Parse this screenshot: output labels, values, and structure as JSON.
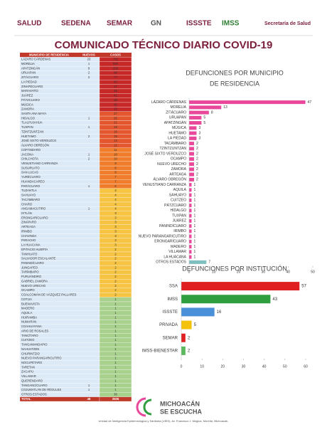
{
  "header": {
    "logos": [
      "SALUD",
      "SEDENA",
      "SEMAR",
      "GN",
      "ISSSTE",
      "IMSS",
      "Secretaría de Salud"
    ]
  },
  "title": "COMUNICADO TÉCNICO DIARIO COVID-19",
  "table": {
    "columns": [
      "MUNICIPIO DE RESIDENCIA",
      "NUEVOS",
      "CASOS"
    ],
    "rows": [
      [
        "LÁZARO CÁRDENAS",
        23,
        792,
        "#c62828"
      ],
      [
        "MORELIA",
        1,
        632,
        "#c62828"
      ],
      [
        "APATZINGÁN",
        9,
        259,
        "#c62828"
      ],
      [
        "URUAPAN",
        2,
        98,
        "#c62828"
      ],
      [
        "ZITÁCUARO",
        2,
        77,
        "#c62828"
      ],
      [
        "LA PIEDAD",
        null,
        62,
        "#c62828"
      ],
      [
        "ZINAPÉCUARO",
        null,
        47,
        "#c62828"
      ],
      [
        "MARAVATÍO",
        null,
        45,
        "#c62828"
      ],
      [
        "JUÁREZ",
        null,
        42,
        "#c62828"
      ],
      [
        "PÁTZCUARO",
        null,
        38,
        "#c62828"
      ],
      [
        "MÚGICA",
        null,
        35,
        "#c62828"
      ],
      [
        "ZAMORA",
        null,
        33,
        "#c62828"
      ],
      [
        "SANTA ANA MAYA",
        null,
        27,
        "#e4572e"
      ],
      [
        "HIDALGO",
        1,
        25,
        "#e4572e"
      ],
      [
        "TLALPUJAHUA",
        null,
        21,
        "#e4572e"
      ],
      [
        "TUXPAN",
        1,
        18,
        "#e4572e"
      ],
      [
        "TZINTZUNTZAN",
        null,
        16,
        "#e4572e"
      ],
      [
        "HUETAMO",
        2,
        15,
        "#e4572e"
      ],
      [
        "JOSÉ SIXTO VERDUZCO",
        null,
        13,
        "#e4572e"
      ],
      [
        "ÁLVARO OBREGÓN",
        null,
        12,
        "#e4572e"
      ],
      [
        "COPÁNDARO",
        null,
        11,
        "#ef7d2c"
      ],
      [
        "JACONA",
        1,
        10,
        "#ef7d2c"
      ],
      [
        "CHILCHOTA",
        2,
        10,
        "#ef7d2c"
      ],
      [
        "VENUSTIANO CARRANZA",
        null,
        9,
        "#ef7d2c"
      ],
      [
        "SUSUPUATO",
        null,
        8,
        "#ef7d2c"
      ],
      [
        "SAN LUCAS",
        null,
        8,
        "#ef7d2c"
      ],
      [
        "YURÉCUARO",
        null,
        7,
        "#ef7d2c"
      ],
      [
        "HUANDACAREO",
        null,
        7,
        "#ef7d2c"
      ],
      [
        "PARÁCUARO",
        1,
        6,
        "#ef7d2c"
      ],
      [
        "TUZANTLA",
        null,
        4,
        "#f6c343"
      ],
      [
        "SAHUAYO",
        null,
        4,
        "#f6c343"
      ],
      [
        "TACÁMBARO",
        null,
        4,
        "#f6c343"
      ],
      [
        "CHARO",
        null,
        4,
        "#f6c343"
      ],
      [
        "ANGAMACUTIRO",
        1,
        4,
        "#f6c343"
      ],
      [
        "IXTLÁN",
        null,
        3,
        "#f6c343"
      ],
      [
        "ERONGARÍCUARO",
        null,
        3,
        "#f6c343"
      ],
      [
        "ZINÁPARO",
        null,
        3,
        "#f6c343"
      ],
      [
        "ARTEAGA",
        null,
        3,
        "#f6c343"
      ],
      [
        "IRIMBO",
        null,
        3,
        "#f6c343"
      ],
      [
        "CHAVINDA",
        null,
        3,
        "#f6c343"
      ],
      [
        "PARACHO",
        null,
        3,
        "#f6c343"
      ],
      [
        "LA HUACANA",
        null,
        3,
        "#f6c343"
      ],
      [
        "EPITACIO HUERTA",
        null,
        2,
        "#f6c343"
      ],
      [
        "TANHUATO",
        null,
        2,
        "#f6c343"
      ],
      [
        "SALVADOR ESCALANTE",
        null,
        2,
        "#f6c343"
      ],
      [
        "PANINDÍCUARO",
        null,
        2,
        "#f6c343"
      ],
      [
        "JUNGAPEO",
        null,
        2,
        "#f6c343"
      ],
      [
        "TARÍMBARO",
        null,
        2,
        "#f6c343"
      ],
      [
        "PURUÁNDIRO",
        null,
        2,
        "#f6c343"
      ],
      [
        "GABRIEL ZAMORA",
        null,
        2,
        "#f6c343"
      ],
      [
        "NUEVO URECHO",
        null,
        2,
        "#f6c343"
      ],
      [
        "OCAMPO",
        null,
        2,
        "#f6c343"
      ],
      [
        "COALCOMÁN DE VÁZQUEZ PALLARES",
        null,
        2,
        "#f6c343"
      ],
      [
        "COTIJA",
        null,
        1,
        "#a9d18e"
      ],
      [
        "BUENAVISTA",
        null,
        1,
        "#a9d18e"
      ],
      [
        "MADERO",
        null,
        1,
        "#a9d18e"
      ],
      [
        "AQUILA",
        null,
        1,
        "#a9d18e"
      ],
      [
        "HUIRAMBA",
        null,
        1,
        "#a9d18e"
      ],
      [
        "NUMARÁN",
        null,
        1,
        "#a9d18e"
      ],
      [
        "COAHUAYANA",
        null,
        1,
        "#a9d18e"
      ],
      [
        "ARIO DE ROSALES",
        null,
        1,
        "#a9d18e"
      ],
      [
        "TANCÍTARO",
        null,
        1,
        "#a9d18e"
      ],
      [
        "CUITZEO",
        null,
        1,
        "#a9d18e"
      ],
      [
        "TANGAMANDAPIO",
        null,
        1,
        "#a9d18e"
      ],
      [
        "NAHUATZEN",
        null,
        1,
        "#a9d18e"
      ],
      [
        "CHURINTZIO",
        null,
        1,
        "#a9d18e"
      ],
      [
        "NUEVO PARANGARICUTIRO",
        null,
        1,
        "#a9d18e"
      ],
      [
        "NOCUPÉTARO",
        null,
        1,
        "#a9d18e"
      ],
      [
        "TARETAN",
        null,
        1,
        "#a9d18e"
      ],
      [
        "ZACAPU",
        null,
        1,
        "#a9d18e"
      ],
      [
        "VILLAMAR",
        null,
        1,
        "#a9d18e"
      ],
      [
        "QUERÉNDARO",
        null,
        1,
        "#a9d18e"
      ],
      [
        "TANGANCÍCUARO",
        1,
        1,
        "#a9d18e"
      ],
      [
        "COJUMATLÁN DE RÉGULES",
        1,
        1,
        "#a9d18e"
      ],
      [
        "OTROS ESTADOS",
        null,
        36,
        "#a9d18e"
      ]
    ],
    "total": [
      "TOTAL",
      48,
      2506
    ]
  },
  "chart_data": [
    {
      "type": "barh",
      "title_lines": [
        "DEFUNCIONES POR MUNICIPIO",
        "DE RESIDENCIA"
      ],
      "categories": [
        "LÁZARO CÁRDENAS",
        "MORELIA",
        "ZITÁCUARO",
        "URUAPAN",
        "APATZINGÁN",
        "MÚGICA",
        "HUETAMO",
        "LA PIEDAD",
        "TACÁMBARO",
        "TZINTZUNTZAN",
        "JOSÉ SIXTO VERDUZCO",
        "OCAMPO",
        "NUEVO URECHO",
        "ZAMORA",
        "ARTEAGA",
        "ÁLVARO OBREGÓN",
        "VENUSTIANO CARRANZA",
        "AQUILA",
        "SAHUAYO",
        "CUITZEO",
        "PÁTZCUARO",
        "HIDALGO",
        "TUXPAN",
        "JUÁREZ",
        "PANINDÍCUARO",
        "IRIMBO",
        "NUEVO PARANGARICUTIRO",
        "ERONGARÍCUARO",
        "MADERO",
        "VILLAMAR",
        "LA HUACANA",
        "OTROS ESTADOS"
      ],
      "values": [
        47,
        13,
        8,
        5,
        5,
        3,
        3,
        3,
        2,
        2,
        2,
        2,
        2,
        2,
        2,
        2,
        1,
        1,
        1,
        1,
        1,
        1,
        1,
        1,
        1,
        1,
        1,
        1,
        1,
        1,
        1,
        7
      ],
      "colors": [
        "#e8479a",
        "#e8479a",
        "#e8479a",
        "#e8479a",
        "#e8479a",
        "#e8479a",
        "#e8479a",
        "#e8479a",
        "#e8479a",
        "#e8479a",
        "#e8479a",
        "#e8479a",
        "#e8479a",
        "#e8479a",
        "#e8479a",
        "#e8479a",
        "#e8479a",
        "#e8479a",
        "#e8479a",
        "#e8479a",
        "#e8479a",
        "#e8479a",
        "#e8479a",
        "#e8479a",
        "#e8479a",
        "#e8479a",
        "#e8479a",
        "#e8479a",
        "#e8479a",
        "#e8479a",
        "#e8479a",
        "#7fbfbf"
      ],
      "xlim": [
        0,
        50
      ],
      "xticks": [
        0,
        10,
        20,
        30,
        40,
        50
      ]
    },
    {
      "type": "barh",
      "title_lines": [
        "DEFUNCIONES POR INSTITUCIÓN"
      ],
      "categories": [
        "SSA",
        "IMSS",
        "ISSSTE",
        "PRIVADA",
        "SEMAR",
        "IMSS-BIENESTAR"
      ],
      "values": [
        57,
        43,
        16,
        5,
        2,
        2
      ],
      "colors": [
        "#e02020",
        "#2e9e3e",
        "#4a90d9",
        "#f4c20d",
        "#e02020",
        "#5cb85c"
      ],
      "xlim": [
        0,
        60
      ],
      "xticks": [
        0,
        10,
        20,
        30,
        40,
        50,
        60
      ]
    }
  ],
  "footer": {
    "logo": [
      "MICHOACÁN",
      "SE ESCUCHA"
    ],
    "text": "Unidad de Inteligencia Epidemiológica y Sanitaria (UIES). Av. Francisco J. Múgica, Morelia, Michoacán."
  }
}
